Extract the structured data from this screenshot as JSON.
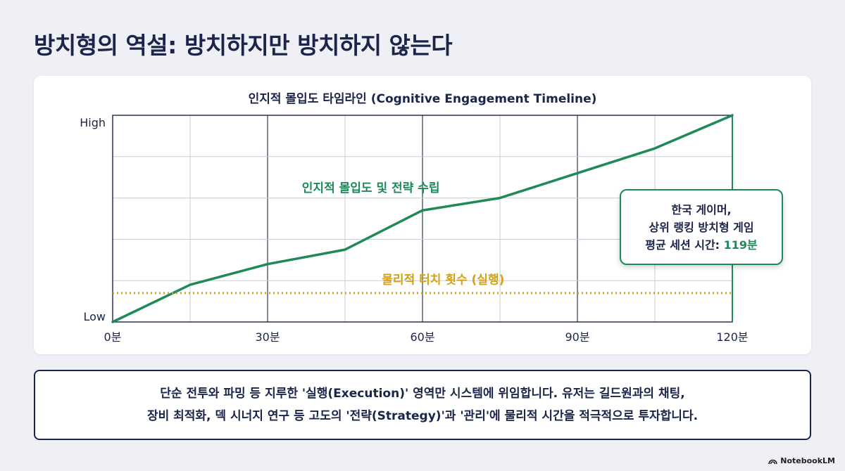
{
  "page": {
    "title": "방치형의 역설: 방치하지만 방치하지 않는다"
  },
  "chart_data": {
    "type": "line",
    "title": "인지적 몰입도 타임라인 (Cognitive Engagement Timeline)",
    "xlabel": "",
    "ylabel": "",
    "x_ticks": [
      "0분",
      "30분",
      "60분",
      "90분",
      "120분"
    ],
    "x_tick_values": [
      0,
      30,
      60,
      90,
      120
    ],
    "y_ticks": [
      "Low",
      "High"
    ],
    "xlim": [
      0,
      120
    ],
    "ylim": [
      0,
      1
    ],
    "grid": true,
    "series": [
      {
        "name": "인지적 몰입도 및 전략 수립",
        "color": "#1e8a58",
        "style": "solid",
        "x": [
          0,
          15,
          30,
          45,
          60,
          75,
          90,
          105,
          120
        ],
        "y": [
          0,
          0.18,
          0.28,
          0.35,
          0.54,
          0.6,
          0.72,
          0.84,
          1.0
        ]
      },
      {
        "name": "물리적 터치 횟수 (실행)",
        "color": "#d4a017",
        "style": "dotted",
        "x": [
          0,
          120
        ],
        "y": [
          0.14,
          0.14
        ]
      }
    ],
    "marker_line": {
      "x": 120,
      "color": "#1e8a58"
    }
  },
  "callout": {
    "line1": "한국 게이머,",
    "line2": "상위 랭킹 방치형 게임",
    "line3_label": "평균 세션 시간: ",
    "line3_value": "119분"
  },
  "caption": {
    "line1": "단순 전투와 파밍 등 지루한 '실행(Execution)' 영역만 시스템에 위임합니다. 유저는 길드원과의 채팅,",
    "line2": "장비 최적화, 덱 시너지 연구 등 고도의 '전략(Strategy)'과 '관리'에 물리적 시간을 적극적으로 투자합니다."
  },
  "brand": {
    "name": "NotebookLM",
    "icon": "notebooklm-logo-icon"
  }
}
